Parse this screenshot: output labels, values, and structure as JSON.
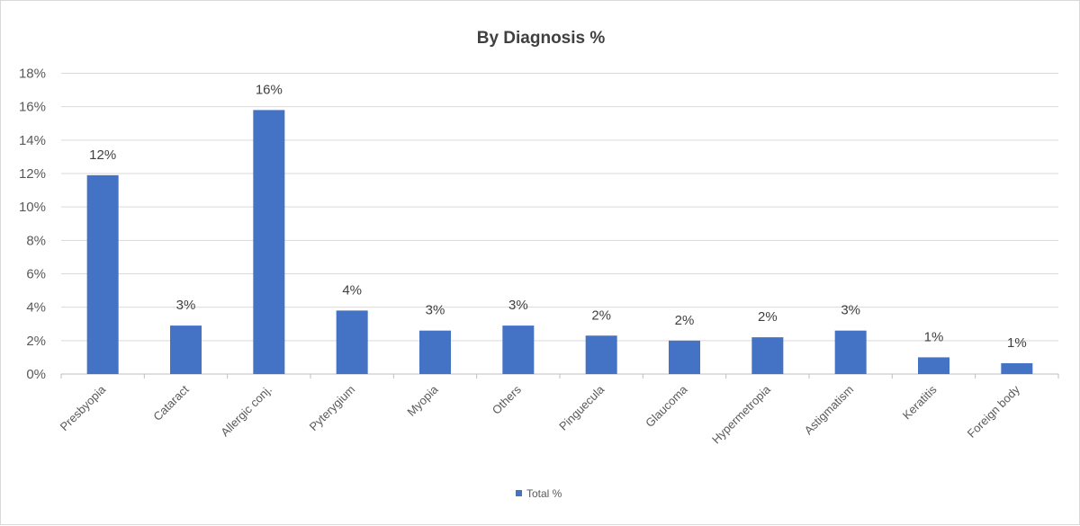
{
  "chart_data": {
    "type": "bar",
    "title": "By Diagnosis %",
    "xlabel": "",
    "ylabel": "",
    "ylim": [
      0,
      18
    ],
    "yticks": [
      "0%",
      "2%",
      "4%",
      "6%",
      "8%",
      "10%",
      "12%",
      "14%",
      "16%",
      "18%"
    ],
    "grid": true,
    "legend_position": "bottom",
    "categories": [
      "Presbyopia",
      "Cataract",
      "Allergic conj.",
      "Pyterygium",
      "Myopia",
      "Others",
      "Pinguecula",
      "Glaucoma",
      "Hypermetropia",
      "Astigmatism",
      "Keratitis",
      "Foreign body"
    ],
    "series": [
      {
        "name": "Total %",
        "color": "#4472c4",
        "values": [
          11.9,
          2.9,
          15.8,
          3.8,
          2.6,
          2.9,
          2.3,
          2.0,
          2.2,
          2.6,
          1.0,
          0.65
        ],
        "data_labels": [
          "12%",
          "3%",
          "16%",
          "4%",
          "3%",
          "3%",
          "2%",
          "2%",
          "2%",
          "3%",
          "1%",
          "1%"
        ]
      }
    ]
  }
}
